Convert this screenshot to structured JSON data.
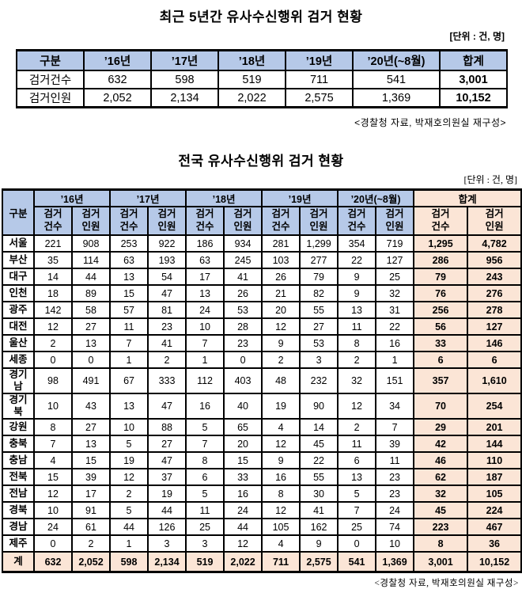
{
  "colors": {
    "header_blue": "#b6c9e8",
    "total_peach": "#fbe5d6",
    "border": "#000000"
  },
  "table1": {
    "title": "최근 5년간 유사수신행위 검거 현황",
    "unit": "[단위 : 건, 명]",
    "headers": [
      "구분",
      "’16년",
      "’17년",
      "’18년",
      "’19년",
      "’20년(~8월)",
      "합계"
    ],
    "rows": [
      {
        "label": "검거건수",
        "values": [
          "632",
          "598",
          "519",
          "711",
          "541",
          "3,001"
        ]
      },
      {
        "label": "검거인원",
        "values": [
          "2,052",
          "2,134",
          "2,022",
          "2,575",
          "1,369",
          "10,152"
        ]
      }
    ],
    "source": "<경찰청 자료, 박재호의원실 재구성>"
  },
  "table2": {
    "title": "전국 유사수신행위 검거 현황",
    "unit": "[단위 : 건, 명]",
    "corner_header": "구분",
    "year_headers": [
      "’16년",
      "’17년",
      "’18년",
      "’19년",
      "’20년(~8월)"
    ],
    "total_header": "합계",
    "sub_headers": [
      "검거\n건수",
      "검거\n인원"
    ],
    "rows": [
      {
        "label": "서울",
        "values": [
          "221",
          "908",
          "253",
          "922",
          "186",
          "934",
          "281",
          "1,299",
          "354",
          "719",
          "1,295",
          "4,782"
        ]
      },
      {
        "label": "부산",
        "values": [
          "35",
          "114",
          "63",
          "193",
          "63",
          "245",
          "103",
          "277",
          "22",
          "127",
          "286",
          "956"
        ]
      },
      {
        "label": "대구",
        "values": [
          "14",
          "44",
          "13",
          "54",
          "17",
          "41",
          "26",
          "79",
          "9",
          "25",
          "79",
          "243"
        ]
      },
      {
        "label": "인천",
        "values": [
          "18",
          "89",
          "15",
          "47",
          "13",
          "26",
          "21",
          "82",
          "9",
          "32",
          "76",
          "276"
        ]
      },
      {
        "label": "광주",
        "values": [
          "142",
          "58",
          "57",
          "81",
          "24",
          "53",
          "20",
          "55",
          "13",
          "31",
          "256",
          "278"
        ]
      },
      {
        "label": "대전",
        "values": [
          "12",
          "27",
          "11",
          "23",
          "10",
          "28",
          "12",
          "27",
          "11",
          "22",
          "56",
          "127"
        ]
      },
      {
        "label": "울산",
        "values": [
          "2",
          "13",
          "7",
          "41",
          "7",
          "23",
          "9",
          "53",
          "8",
          "16",
          "33",
          "146"
        ]
      },
      {
        "label": "세종",
        "values": [
          "0",
          "0",
          "1",
          "2",
          "1",
          "0",
          "2",
          "3",
          "2",
          "1",
          "6",
          "6"
        ]
      },
      {
        "label": "경기\n남",
        "values": [
          "98",
          "491",
          "67",
          "333",
          "112",
          "403",
          "48",
          "232",
          "32",
          "151",
          "357",
          "1,610"
        ]
      },
      {
        "label": "경기\n북",
        "values": [
          "10",
          "43",
          "13",
          "47",
          "16",
          "40",
          "19",
          "90",
          "12",
          "34",
          "70",
          "254"
        ]
      },
      {
        "label": "강원",
        "values": [
          "8",
          "27",
          "10",
          "88",
          "5",
          "65",
          "4",
          "14",
          "2",
          "7",
          "29",
          "201"
        ]
      },
      {
        "label": "충북",
        "values": [
          "7",
          "13",
          "5",
          "27",
          "7",
          "20",
          "12",
          "45",
          "11",
          "39",
          "42",
          "144"
        ]
      },
      {
        "label": "충남",
        "values": [
          "4",
          "15",
          "19",
          "47",
          "8",
          "15",
          "9",
          "22",
          "6",
          "11",
          "46",
          "110"
        ]
      },
      {
        "label": "전북",
        "values": [
          "15",
          "39",
          "12",
          "37",
          "6",
          "33",
          "16",
          "55",
          "13",
          "23",
          "62",
          "187"
        ]
      },
      {
        "label": "전남",
        "values": [
          "12",
          "17",
          "2",
          "19",
          "5",
          "16",
          "8",
          "30",
          "5",
          "23",
          "32",
          "105"
        ]
      },
      {
        "label": "경북",
        "values": [
          "10",
          "91",
          "5",
          "44",
          "11",
          "24",
          "12",
          "41",
          "7",
          "24",
          "45",
          "224"
        ]
      },
      {
        "label": "경남",
        "values": [
          "24",
          "61",
          "44",
          "126",
          "25",
          "44",
          "105",
          "162",
          "25",
          "74",
          "223",
          "467"
        ]
      },
      {
        "label": "제주",
        "values": [
          "0",
          "2",
          "1",
          "3",
          "3",
          "12",
          "4",
          "9",
          "0",
          "10",
          "8",
          "36"
        ]
      }
    ],
    "total_row": {
      "label": "계",
      "values": [
        "632",
        "2,052",
        "598",
        "2,134",
        "519",
        "2,022",
        "711",
        "2,575",
        "541",
        "1,369",
        "3,001",
        "10,152"
      ]
    },
    "source": "<경찰청 자료, 박재호의원실 재구성>"
  }
}
